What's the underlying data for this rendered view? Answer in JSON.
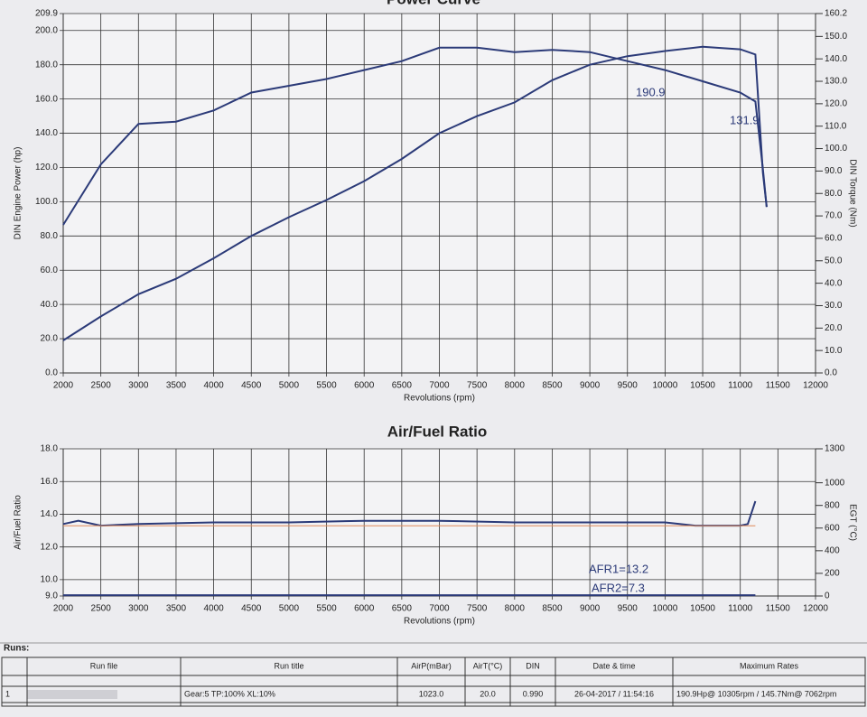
{
  "chart_data": [
    {
      "type": "line",
      "title": "Power Curve",
      "x_label": "Revolutions (rpm)",
      "y_label": "DIN Engine Power (hp)",
      "y2_label": "DIN Torque (Nm)",
      "x": [
        2000,
        2500,
        3000,
        3500,
        4000,
        4500,
        5000,
        5500,
        6000,
        6500,
        7000,
        7500,
        8000,
        8500,
        9000,
        9500,
        10000,
        10500,
        11000,
        11200,
        11300,
        11350
      ],
      "series": [
        {
          "color": "#2b3a78",
          "values": [
            19,
            33,
            46,
            55,
            67,
            80,
            91,
            101,
            112,
            125,
            140,
            150,
            158,
            171,
            180,
            185,
            188,
            190.5,
            189,
            186,
            117,
            97
          ]
        },
        {
          "color": "#2b3a78",
          "axis": "y2",
          "values": [
            66,
            93,
            111,
            112,
            117,
            125,
            128,
            131,
            135,
            139,
            145,
            145,
            143,
            144,
            143,
            139,
            135,
            130,
            125,
            121,
            91,
            74
          ]
        }
      ],
      "annotations": [
        "190.9",
        "131.9"
      ],
      "xlim": [
        2000,
        12000
      ],
      "xticks": [
        2000,
        2500,
        3000,
        3500,
        4000,
        4500,
        5000,
        5500,
        6000,
        6500,
        7000,
        7500,
        8000,
        8500,
        9000,
        9500,
        10000,
        10500,
        11000,
        11500,
        12000
      ],
      "ylim": [
        0,
        209.9
      ],
      "yticks": [
        {
          "value": 0,
          "label": "0.0"
        },
        {
          "value": 20,
          "label": "20.0"
        },
        {
          "value": 40,
          "label": "40.0"
        },
        {
          "value": 60,
          "label": "60.0"
        },
        {
          "value": 80,
          "label": "80.0"
        },
        {
          "value": 100,
          "label": "100.0"
        },
        {
          "value": 120,
          "label": "120.0"
        },
        {
          "value": 140,
          "label": "140.0"
        },
        {
          "value": 160,
          "label": "160.0"
        },
        {
          "value": 180,
          "label": "180.0"
        },
        {
          "value": 200,
          "label": "200.0"
        },
        {
          "value": 209.9,
          "label": "209.9"
        }
      ],
      "y2lim": [
        0,
        160.2
      ],
      "y2ticks": [
        {
          "value": 0,
          "label": "0.0"
        },
        {
          "value": 10,
          "label": "10.0"
        },
        {
          "value": 20,
          "label": "20.0"
        },
        {
          "value": 30,
          "label": "30.0"
        },
        {
          "value": 40,
          "label": "40.0"
        },
        {
          "value": 50,
          "label": "50.0"
        },
        {
          "value": 60,
          "label": "60.0"
        },
        {
          "value": 70,
          "label": "70.0"
        },
        {
          "value": 80,
          "label": "80.0"
        },
        {
          "value": 90,
          "label": "90.0"
        },
        {
          "value": 100,
          "label": "100.0"
        },
        {
          "value": 110,
          "label": "110.0"
        },
        {
          "value": 120,
          "label": "120.0"
        },
        {
          "value": 130,
          "label": "130.0"
        },
        {
          "value": 140,
          "label": "140.0"
        },
        {
          "value": 150,
          "label": "150.0"
        },
        {
          "value": 160.2,
          "label": "160.2"
        }
      ],
      "grid": true
    },
    {
      "type": "line",
      "title": "Air/Fuel Ratio",
      "x_label": "Revolutions (rpm)",
      "y_label": "Air/Fuel Ratio",
      "y2_label": "EGT (°C)",
      "x": [
        2000,
        2200,
        2500,
        3000,
        4000,
        5000,
        6000,
        7000,
        8000,
        9000,
        10000,
        10400,
        11000,
        11100,
        11200
      ],
      "series": [
        {
          "color": "#2b3a78",
          "values": [
            13.4,
            13.6,
            13.3,
            13.4,
            13.5,
            13.5,
            13.6,
            13.6,
            13.5,
            13.5,
            13.5,
            13.3,
            13.3,
            13.4,
            14.8
          ]
        },
        {
          "color": "#2b3a78",
          "values": [
            9.05,
            9.05,
            9.05,
            9.05,
            9.05,
            9.05,
            9.05,
            9.05,
            9.05,
            9.05,
            9.05,
            9.05,
            9.05,
            9.05,
            9.05
          ]
        },
        {
          "color": "#e08a5a",
          "axis": "y2",
          "values": [
            620,
            620,
            620,
            620,
            620,
            620,
            620,
            620,
            620,
            620,
            620,
            620,
            620,
            620,
            620
          ]
        }
      ],
      "annotations": [
        "AFR1=13.2",
        "AFR2=7.3"
      ],
      "xlim": [
        2000,
        12000
      ],
      "xticks": [
        2000,
        2500,
        3000,
        3500,
        4000,
        4500,
        5000,
        5500,
        6000,
        6500,
        7000,
        7500,
        8000,
        8500,
        9000,
        9500,
        10000,
        10500,
        11000,
        11500,
        12000
      ],
      "ylim": [
        9,
        18
      ],
      "yticks": [
        {
          "value": 9,
          "label": "9.0"
        },
        {
          "value": 10,
          "label": "10.0"
        },
        {
          "value": 12,
          "label": "12.0"
        },
        {
          "value": 14,
          "label": "14.0"
        },
        {
          "value": 16,
          "label": "16.0"
        },
        {
          "value": 18,
          "label": "18.0"
        }
      ],
      "y2lim": [
        0,
        1300
      ],
      "y2ticks": [
        0,
        200,
        400,
        600,
        800,
        1000,
        1300
      ],
      "grid": true
    }
  ],
  "runs": {
    "label": "Runs:",
    "header": [
      "Run file",
      "Run title",
      "AirP(mBar)",
      "AirT(°C)",
      "DIN",
      "Date & time",
      "Maximum Rates"
    ],
    "rows": [
      [
        "1",
        "Gear:5 TP:100% XL:10%",
        "1023.0",
        "20.0",
        "0.990",
        "26-04-2017 / 11:54:16",
        "190.9Hp@ 10305rpm / 145.7Nm@ 7062rpm"
      ]
    ]
  }
}
